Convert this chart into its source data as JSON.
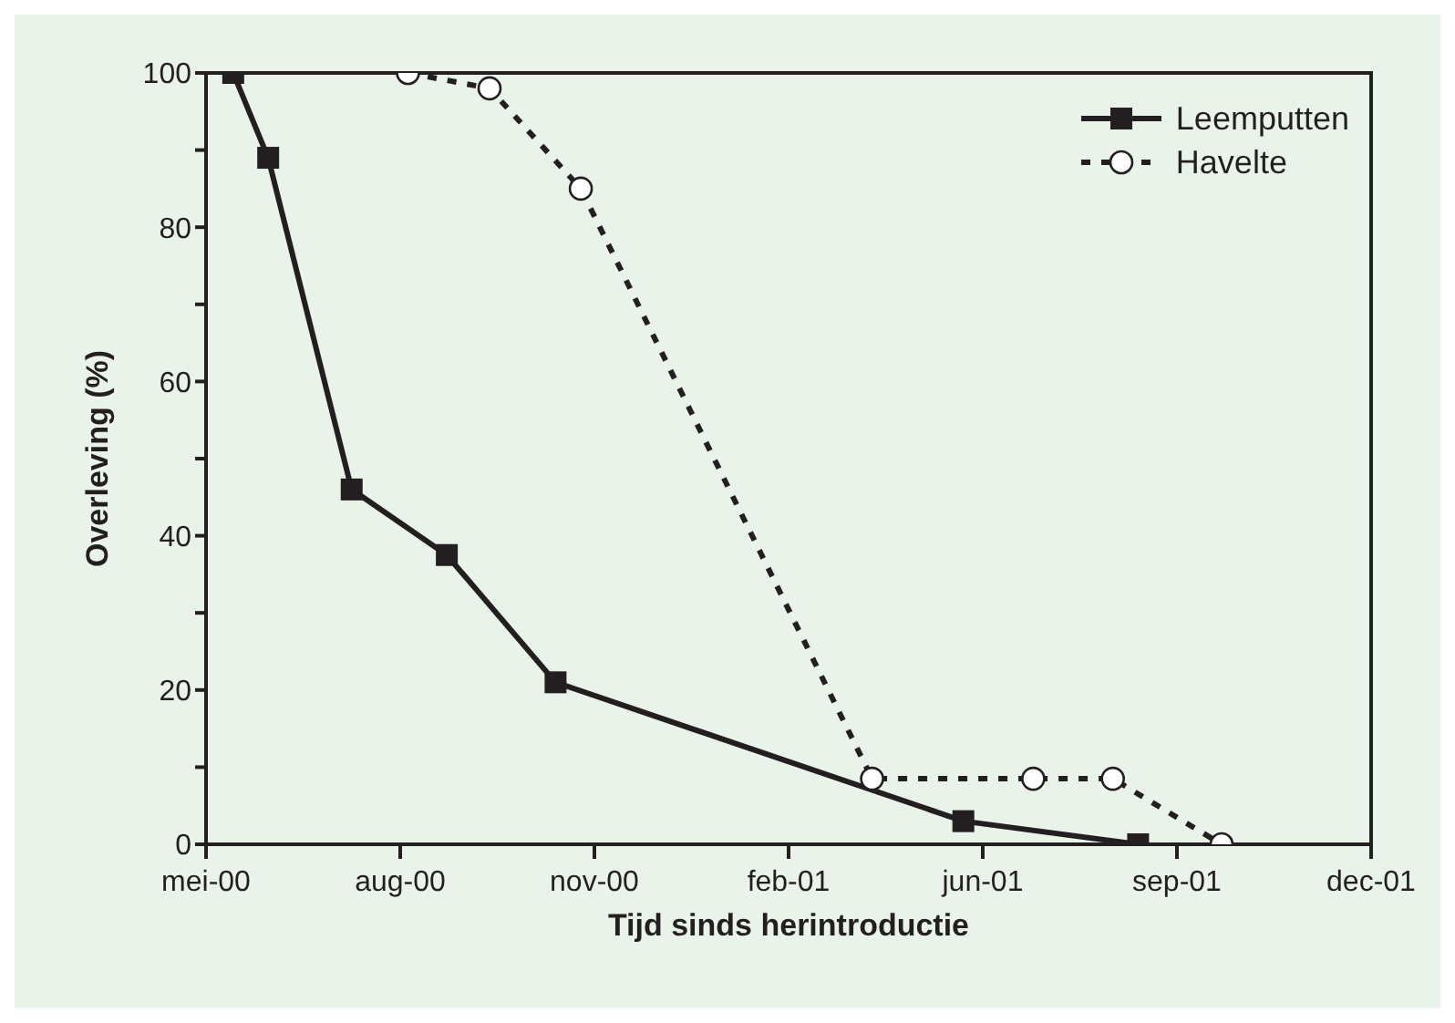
{
  "chart_data": {
    "type": "line",
    "xlabel": "Tijd sinds herintroductie",
    "ylabel": "Overleving (%)",
    "xlim": [
      "2000-05-01",
      "2001-12-22"
    ],
    "xticks": [
      {
        "value": "2000-05-01",
        "label": "mei-00"
      },
      {
        "value": "2000-08-09",
        "label": "aug-00"
      },
      {
        "value": "2000-11-17",
        "label": "nov-00"
      },
      {
        "value": "2001-02-25",
        "label": "feb-01"
      },
      {
        "value": "2001-06-05",
        "label": "jun-01"
      },
      {
        "value": "2001-09-13",
        "label": "sep-01"
      },
      {
        "value": "2001-12-22",
        "label": "dec-01"
      }
    ],
    "ylim": [
      0,
      100
    ],
    "yticks": [
      0,
      {
        "value": 10,
        "label": null
      },
      20,
      {
        "value": 30,
        "label": null
      },
      40,
      {
        "value": 50,
        "label": null
      },
      60,
      {
        "value": 70,
        "label": null
      },
      80,
      {
        "value": 90,
        "label": null
      },
      100
    ],
    "grid": false,
    "legend": "top right",
    "series": [
      {
        "name": "Leemputten",
        "color": "#231f20",
        "marker": "square",
        "line_style": "solid",
        "x": [
          "2000-05-15",
          "2000-06-02",
          "2000-07-15",
          "2000-09-02",
          "2000-10-28",
          "2001-05-26",
          "2001-08-24"
        ],
        "values": [
          100,
          89,
          46,
          37.5,
          21,
          3,
          0
        ]
      },
      {
        "name": "Havelte",
        "color": "#231f20",
        "marker": "circle",
        "line_style": "dashed",
        "x": [
          "2000-08-13",
          "2000-09-24",
          "2000-11-10",
          "2001-04-09",
          "2001-07-01",
          "2001-08-11",
          "2001-10-06"
        ],
        "values": [
          100,
          98,
          85,
          8.5,
          8.5,
          8.5,
          0
        ]
      }
    ]
  }
}
